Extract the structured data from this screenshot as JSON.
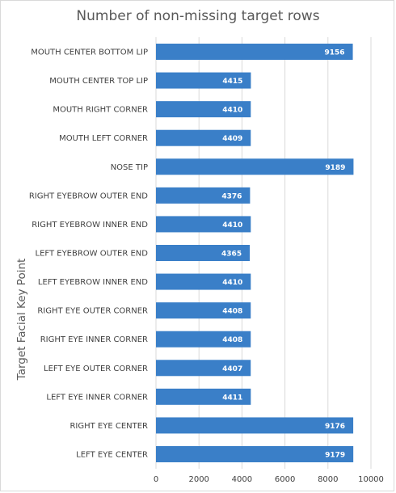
{
  "chart_data": {
    "type": "bar",
    "orientation": "horizontal",
    "title": "Number of non-missing target rows",
    "xlabel": "",
    "ylabel": "Target Facial Key Point",
    "categories": [
      "MOUTH CENTER BOTTOM LIP",
      "MOUTH CENTER TOP LIP",
      "MOUTH RIGHT CORNER",
      "MOUTH LEFT CORNER",
      "NOSE TIP",
      "RIGHT EYEBROW OUTER END",
      "RIGHT EYEBROW INNER END",
      "LEFT EYEBROW OUTER END",
      "LEFT EYEBROW INNER END",
      "RIGHT EYE OUTER CORNER",
      "RIGHT EYE INNER CORNER",
      "LEFT EYE OUTER CORNER",
      "LEFT EYE INNER CORNER",
      "RIGHT EYE CENTER",
      "LEFT EYE CENTER"
    ],
    "values": [
      9156,
      4415,
      4410,
      4409,
      9189,
      4376,
      4410,
      4365,
      4410,
      4408,
      4408,
      4407,
      4411,
      9176,
      9179
    ],
    "xlim": [
      0,
      10000
    ],
    "xticks": [
      0,
      2000,
      4000,
      6000,
      8000,
      10000
    ],
    "grid": true,
    "legend": "none",
    "bar_color": "#3a7fc8",
    "grid_color": "#d9d9d9"
  }
}
